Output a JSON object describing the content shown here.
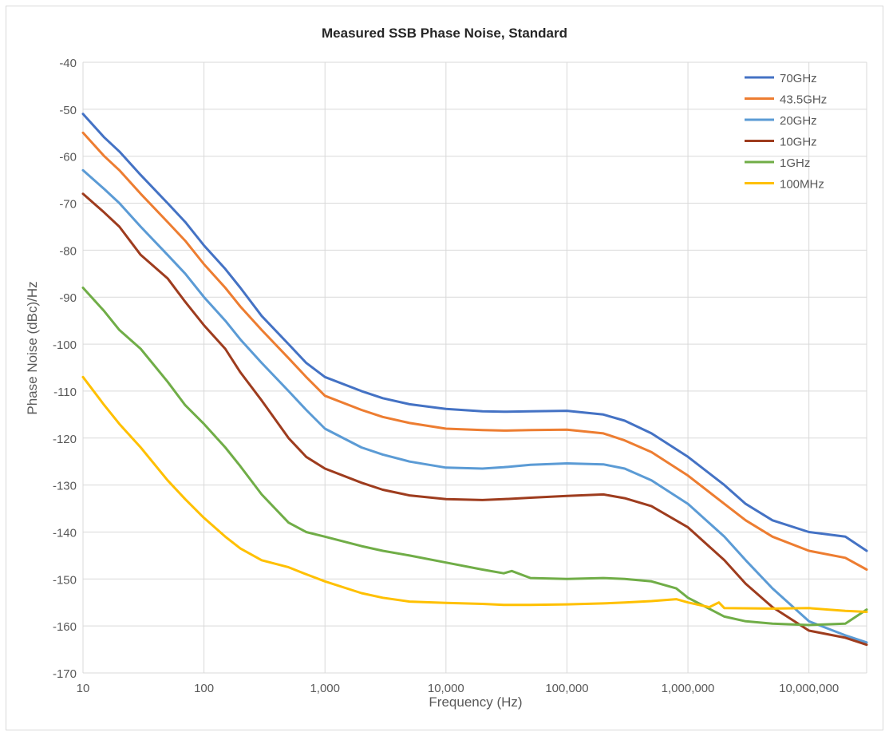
{
  "chart_data": {
    "type": "line",
    "title": "Measured SSB Phase Noise, Standard",
    "xlabel": "Frequency (Hz)",
    "ylabel": "Phase Noise (dBc)/Hz",
    "x_scale": "log",
    "xlim": [
      10,
      30000000
    ],
    "ylim": [
      -170,
      -40
    ],
    "grid": true,
    "legend_position": "top-right",
    "x_ticks": [
      10,
      100,
      1000,
      10000,
      100000,
      1000000,
      10000000
    ],
    "x_tick_labels": [
      "10",
      "100",
      "1,000",
      "10,000",
      "100,000",
      "1,000,000",
      "10,000,000"
    ],
    "y_ticks": [
      -40,
      -50,
      -60,
      -70,
      -80,
      -90,
      -100,
      -110,
      -120,
      -130,
      -140,
      -150,
      -160,
      -170
    ],
    "y_tick_labels": [
      "-40",
      "-50",
      "-60",
      "-70",
      "-80",
      "-90",
      "-100",
      "-110",
      "-120",
      "-130",
      "-140",
      "-150",
      "-160",
      "-170"
    ],
    "series": [
      {
        "name": "70GHz",
        "color": "#4472c4",
        "points": [
          [
            10,
            -51
          ],
          [
            15,
            -56
          ],
          [
            20,
            -59
          ],
          [
            30,
            -64
          ],
          [
            50,
            -70
          ],
          [
            70,
            -74
          ],
          [
            100,
            -79
          ],
          [
            150,
            -84
          ],
          [
            200,
            -88
          ],
          [
            300,
            -94
          ],
          [
            500,
            -100
          ],
          [
            700,
            -104
          ],
          [
            1000,
            -107
          ],
          [
            2000,
            -110
          ],
          [
            3000,
            -111.5
          ],
          [
            5000,
            -112.8
          ],
          [
            10000,
            -113.8
          ],
          [
            20000,
            -114.3
          ],
          [
            30000,
            -114.4
          ],
          [
            50000,
            -114.3
          ],
          [
            100000,
            -114.2
          ],
          [
            200000,
            -115
          ],
          [
            300000,
            -116.3
          ],
          [
            500000,
            -119
          ],
          [
            1000000,
            -124
          ],
          [
            2000000,
            -130
          ],
          [
            3000000,
            -134
          ],
          [
            5000000,
            -137.5
          ],
          [
            10000000,
            -140
          ],
          [
            20000000,
            -141
          ],
          [
            30000000,
            -144
          ]
        ]
      },
      {
        "name": "43.5GHz",
        "color": "#ed7d31",
        "points": [
          [
            10,
            -55
          ],
          [
            15,
            -60
          ],
          [
            20,
            -63
          ],
          [
            30,
            -68
          ],
          [
            50,
            -74
          ],
          [
            70,
            -78
          ],
          [
            100,
            -83
          ],
          [
            150,
            -88
          ],
          [
            200,
            -92
          ],
          [
            300,
            -97
          ],
          [
            500,
            -103
          ],
          [
            700,
            -107
          ],
          [
            1000,
            -111
          ],
          [
            2000,
            -114
          ],
          [
            3000,
            -115.5
          ],
          [
            5000,
            -116.8
          ],
          [
            10000,
            -118
          ],
          [
            20000,
            -118.3
          ],
          [
            30000,
            -118.4
          ],
          [
            50000,
            -118.3
          ],
          [
            100000,
            -118.2
          ],
          [
            200000,
            -119
          ],
          [
            300000,
            -120.5
          ],
          [
            500000,
            -123
          ],
          [
            1000000,
            -128
          ],
          [
            2000000,
            -134
          ],
          [
            3000000,
            -137.5
          ],
          [
            5000000,
            -141
          ],
          [
            10000000,
            -144
          ],
          [
            20000000,
            -145.5
          ],
          [
            30000000,
            -148
          ]
        ]
      },
      {
        "name": "20GHz",
        "color": "#5b9bd5",
        "points": [
          [
            10,
            -63
          ],
          [
            15,
            -67
          ],
          [
            20,
            -70
          ],
          [
            30,
            -75
          ],
          [
            50,
            -81
          ],
          [
            70,
            -85
          ],
          [
            100,
            -90
          ],
          [
            150,
            -95
          ],
          [
            200,
            -99
          ],
          [
            300,
            -104
          ],
          [
            500,
            -110
          ],
          [
            700,
            -114
          ],
          [
            1000,
            -118
          ],
          [
            2000,
            -122
          ],
          [
            3000,
            -123.5
          ],
          [
            5000,
            -125
          ],
          [
            10000,
            -126.3
          ],
          [
            20000,
            -126.5
          ],
          [
            30000,
            -126.2
          ],
          [
            50000,
            -125.7
          ],
          [
            100000,
            -125.4
          ],
          [
            200000,
            -125.6
          ],
          [
            300000,
            -126.5
          ],
          [
            500000,
            -129
          ],
          [
            1000000,
            -134
          ],
          [
            2000000,
            -141
          ],
          [
            3000000,
            -146
          ],
          [
            5000000,
            -152
          ],
          [
            10000000,
            -159
          ],
          [
            20000000,
            -162
          ],
          [
            30000000,
            -163.5
          ]
        ]
      },
      {
        "name": "10GHz",
        "color": "#9e3c1e",
        "points": [
          [
            10,
            -68
          ],
          [
            15,
            -72
          ],
          [
            20,
            -75
          ],
          [
            30,
            -81
          ],
          [
            50,
            -86
          ],
          [
            70,
            -91
          ],
          [
            100,
            -96
          ],
          [
            150,
            -101
          ],
          [
            200,
            -106
          ],
          [
            300,
            -112
          ],
          [
            500,
            -120
          ],
          [
            700,
            -124
          ],
          [
            1000,
            -126.5
          ],
          [
            2000,
            -129.5
          ],
          [
            3000,
            -131
          ],
          [
            5000,
            -132.2
          ],
          [
            10000,
            -133
          ],
          [
            20000,
            -133.2
          ],
          [
            30000,
            -133
          ],
          [
            50000,
            -132.7
          ],
          [
            100000,
            -132.3
          ],
          [
            200000,
            -132
          ],
          [
            300000,
            -132.8
          ],
          [
            500000,
            -134.5
          ],
          [
            1000000,
            -139
          ],
          [
            2000000,
            -146
          ],
          [
            3000000,
            -151
          ],
          [
            5000000,
            -156
          ],
          [
            10000000,
            -161
          ],
          [
            20000000,
            -162.5
          ],
          [
            30000000,
            -164
          ]
        ]
      },
      {
        "name": "1GHz",
        "color": "#70ad47",
        "points": [
          [
            10,
            -88
          ],
          [
            15,
            -93
          ],
          [
            20,
            -97
          ],
          [
            30,
            -101
          ],
          [
            50,
            -108
          ],
          [
            70,
            -113
          ],
          [
            100,
            -117
          ],
          [
            150,
            -122
          ],
          [
            200,
            -126
          ],
          [
            300,
            -132
          ],
          [
            500,
            -138
          ],
          [
            700,
            -140
          ],
          [
            1000,
            -141
          ],
          [
            2000,
            -143
          ],
          [
            3000,
            -144
          ],
          [
            5000,
            -145
          ],
          [
            10000,
            -146.5
          ],
          [
            20000,
            -148
          ],
          [
            30000,
            -148.8
          ],
          [
            35000,
            -148.3
          ],
          [
            50000,
            -149.8
          ],
          [
            100000,
            -150
          ],
          [
            200000,
            -149.8
          ],
          [
            300000,
            -150
          ],
          [
            500000,
            -150.5
          ],
          [
            800000,
            -152
          ],
          [
            1000000,
            -154
          ],
          [
            2000000,
            -158
          ],
          [
            3000000,
            -159
          ],
          [
            5000000,
            -159.5
          ],
          [
            10000000,
            -159.8
          ],
          [
            20000000,
            -159.5
          ],
          [
            30000000,
            -156.5
          ]
        ]
      },
      {
        "name": "100MHz",
        "color": "#ffc000",
        "points": [
          [
            10,
            -107
          ],
          [
            15,
            -113
          ],
          [
            20,
            -117
          ],
          [
            30,
            -122
          ],
          [
            50,
            -129
          ],
          [
            70,
            -133
          ],
          [
            100,
            -137
          ],
          [
            150,
            -141
          ],
          [
            200,
            -143.5
          ],
          [
            300,
            -146
          ],
          [
            500,
            -147.5
          ],
          [
            700,
            -149
          ],
          [
            1000,
            -150.5
          ],
          [
            2000,
            -153
          ],
          [
            3000,
            -154
          ],
          [
            5000,
            -154.8
          ],
          [
            10000,
            -155.1
          ],
          [
            20000,
            -155.3
          ],
          [
            30000,
            -155.5
          ],
          [
            50000,
            -155.5
          ],
          [
            100000,
            -155.4
          ],
          [
            200000,
            -155.2
          ],
          [
            300000,
            -155
          ],
          [
            500000,
            -154.7
          ],
          [
            800000,
            -154.3
          ],
          [
            1000000,
            -155
          ],
          [
            1500000,
            -156
          ],
          [
            1800000,
            -155
          ],
          [
            2000000,
            -156.2
          ],
          [
            5000000,
            -156.3
          ],
          [
            10000000,
            -156.2
          ],
          [
            20000000,
            -156.8
          ],
          [
            30000000,
            -157
          ]
        ]
      }
    ]
  }
}
